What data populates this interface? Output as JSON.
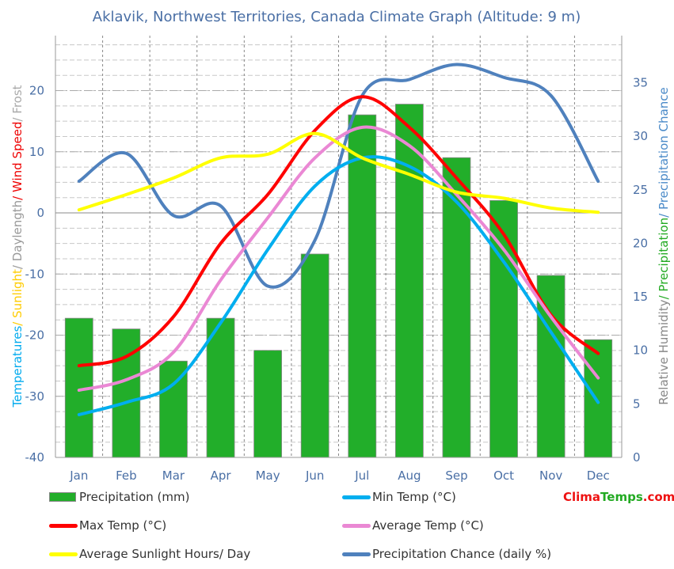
{
  "chart_data": {
    "type": "bar+line",
    "title": "Aklavik, Northwest Territories,  Canada Climate Graph (Altitude: 9 m)",
    "categories": [
      "Jan",
      "Feb",
      "Mar",
      "Apr",
      "May",
      "Jun",
      "Jul",
      "Aug",
      "Sep",
      "Oct",
      "Nov",
      "Dec"
    ],
    "left_axis": {
      "label_parts": [
        {
          "text": "Temperatures",
          "color": "#00aaee"
        },
        {
          "text": "/ Sunlight",
          "color": "#ffcc00"
        },
        {
          "text": "/ Daylength",
          "color": "#999999"
        },
        {
          "text": "/ Wind Speed",
          "color": "#ee0000"
        },
        {
          "text": "/ Frost",
          "color": "#aaaaaa"
        }
      ],
      "ticks": [
        -40,
        -30,
        -20,
        -10,
        0,
        10,
        20
      ],
      "range": [
        -40,
        29
      ]
    },
    "right_axis": {
      "label_parts": [
        {
          "text": "Relative Humidity",
          "color": "#888888"
        },
        {
          "text": "/ Precipitation",
          "color": "#22aa22"
        },
        {
          "text": "/ Precipitation Chance",
          "color": "#4a8ac8"
        }
      ],
      "ticks": [
        0,
        5,
        10,
        15,
        20,
        25,
        30,
        35
      ],
      "range": [
        0,
        39.4
      ]
    },
    "grid": true,
    "legend_placement": "bottom",
    "series": [
      {
        "name": "Precipitation (mm)",
        "type": "bar",
        "axis": "right",
        "color": "#22ae2a",
        "values": [
          13,
          12,
          9,
          13,
          10,
          19,
          32,
          33,
          28,
          24,
          17,
          11
        ]
      },
      {
        "name": "Min Temp (°C)",
        "type": "line",
        "axis": "left",
        "color": "#00aeef",
        "values": [
          -33,
          -31,
          -28,
          -18,
          -6,
          4.4,
          9,
          7.6,
          1.8,
          -8,
          -19.5,
          -31
        ]
      },
      {
        "name": "Max Temp (°C)",
        "type": "line",
        "axis": "left",
        "color": "#ff0000",
        "values": [
          -25,
          -23.5,
          -17,
          -5,
          3,
          13.5,
          19,
          14,
          5.7,
          -3.5,
          -16.7,
          -23
        ]
      },
      {
        "name": "Average Temp (°C)",
        "type": "line",
        "axis": "left",
        "color": "#ea88d4",
        "values": [
          -29,
          -27.3,
          -22.8,
          -11,
          -0.8,
          9,
          14,
          11,
          3,
          -6,
          -17,
          -27
        ]
      },
      {
        "name": "Average Sunlight Hours/ Day",
        "type": "line",
        "axis": "left",
        "color": "#ffff00",
        "values": [
          0.5,
          3,
          5.7,
          9,
          9.6,
          13,
          9,
          6.3,
          3.4,
          2.4,
          0.8,
          0.1
        ]
      },
      {
        "name": "Precipitation Chance (daily %)",
        "type": "line",
        "axis": "right",
        "color": "#4f81bd",
        "values": [
          25.8,
          28.4,
          22.6,
          23.5,
          16,
          20.3,
          33.8,
          35.3,
          36.7,
          35.5,
          33.8,
          25.8
        ]
      }
    ]
  },
  "brand": {
    "clima": "Clima",
    "temps": "Temps",
    ".com": ".com",
    "clima_color": "#ee1111",
    "temps_color": "#22aa22"
  }
}
